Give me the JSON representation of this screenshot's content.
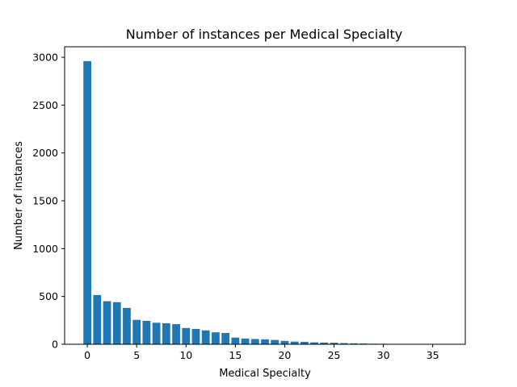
{
  "chart_data": {
    "type": "bar",
    "title": "Number of instances per Medical Specialty",
    "xlabel": "Medical Specialty",
    "ylabel": "Number of instances",
    "x": [
      0,
      1,
      2,
      3,
      4,
      5,
      6,
      7,
      8,
      9,
      10,
      11,
      12,
      13,
      14,
      15,
      16,
      17,
      18,
      19,
      20,
      21,
      22,
      23,
      24,
      25,
      26,
      27,
      28,
      29,
      30,
      31,
      32,
      33,
      34,
      35,
      36
    ],
    "values": [
      2960,
      515,
      450,
      440,
      380,
      255,
      245,
      225,
      220,
      210,
      170,
      160,
      145,
      125,
      118,
      70,
      60,
      55,
      52,
      45,
      35,
      28,
      25,
      20,
      18,
      16,
      12,
      10,
      8,
      6,
      5,
      4,
      3,
      3,
      2,
      2,
      1
    ],
    "xlim": [
      -2.3,
      38.3
    ],
    "ylim": [
      0,
      3110
    ],
    "xticks": [
      0,
      5,
      10,
      15,
      20,
      25,
      30,
      35
    ],
    "yticks": [
      0,
      500,
      1000,
      1500,
      2000,
      2500,
      3000
    ],
    "color": "#1f77b4",
    "grid": false,
    "legend": "none"
  }
}
